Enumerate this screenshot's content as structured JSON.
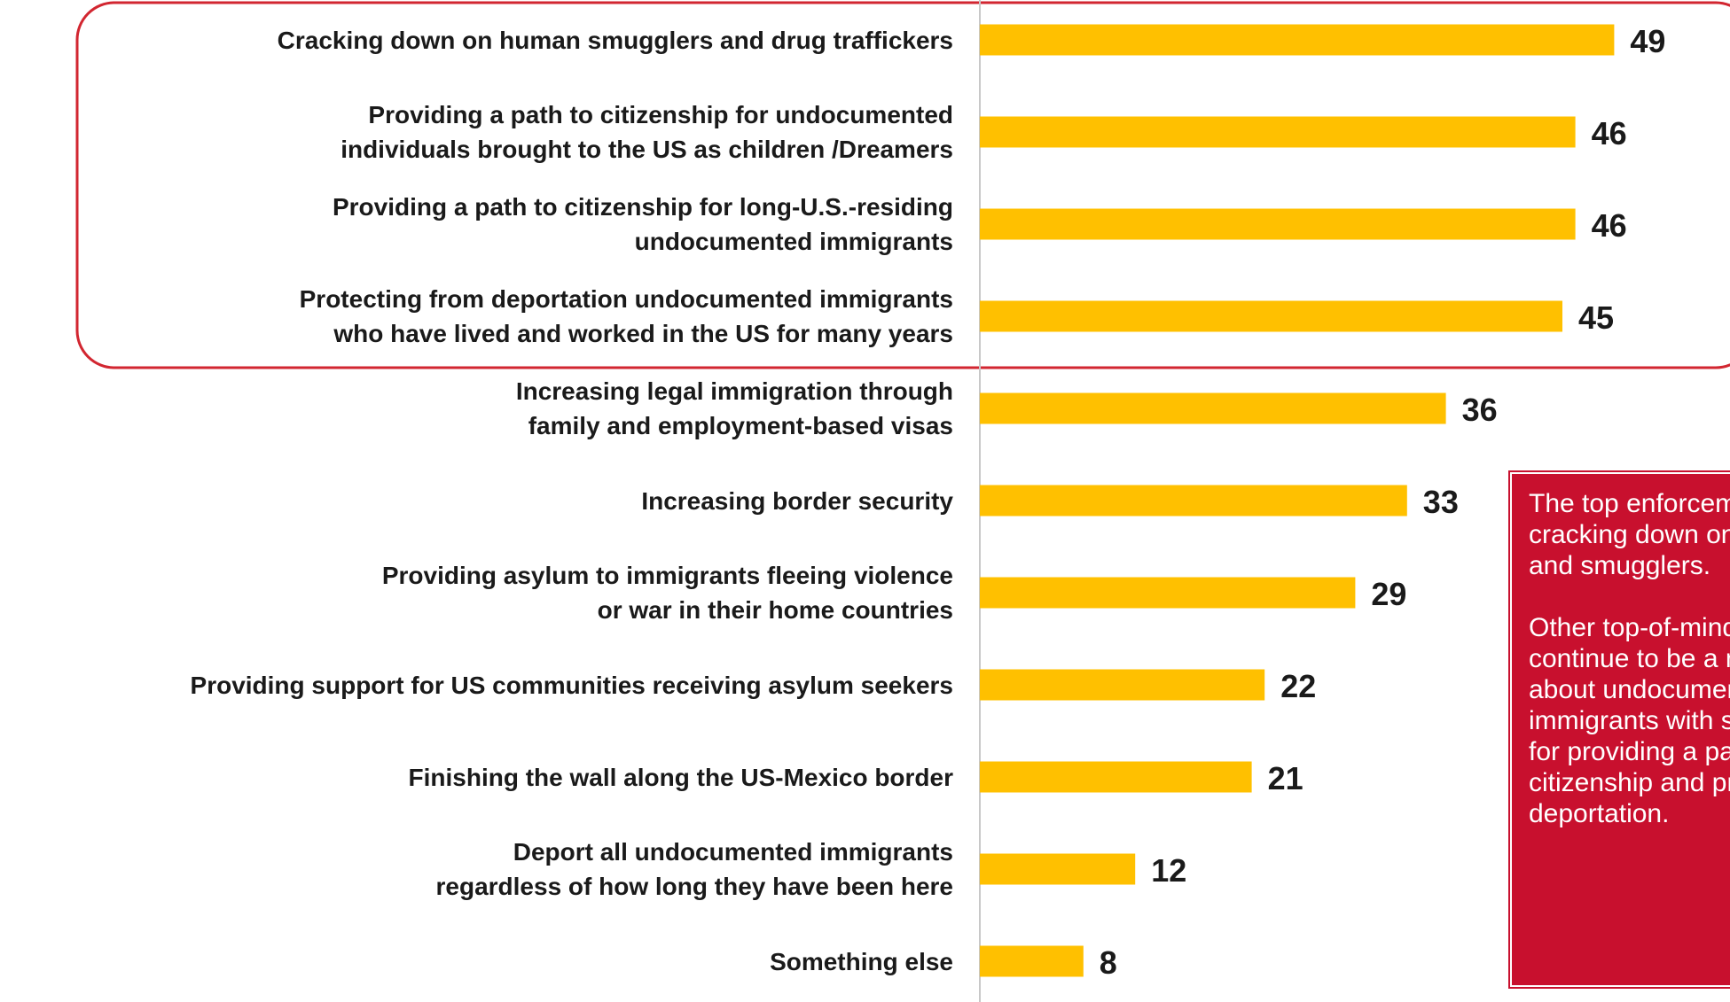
{
  "chart_data": {
    "type": "bar",
    "orientation": "horizontal",
    "categories": [
      [
        "Cracking down on human smugglers and drug traffickers"
      ],
      [
        "Providing a path to citizenship for undocumented",
        "individuals brought to the US as children /Dreamers"
      ],
      [
        "Providing a path to citizenship for long-U.S.-residing",
        "undocumented immigrants"
      ],
      [
        "Protecting from deportation undocumented immigrants",
        "who have lived and worked in the US for many years"
      ],
      [
        "Increasing legal immigration through",
        "family and employment-based visas"
      ],
      [
        "Increasing border security"
      ],
      [
        "Providing asylum to immigrants fleeing violence",
        "or war in their home countries"
      ],
      [
        "Providing support for US communities receiving asylum seekers"
      ],
      [
        "Finishing the wall along the US-Mexico border"
      ],
      [
        "Deport all undocumented immigrants",
        "regardless of how long they have been here"
      ],
      [
        "Something else"
      ]
    ],
    "values": [
      49,
      46,
      46,
      45,
      36,
      33,
      29,
      22,
      21,
      12,
      8
    ],
    "data_labels": [
      "49",
      "46",
      "46",
      "45",
      "36",
      "33",
      "29",
      "22",
      "21",
      "12",
      "8"
    ],
    "highlighted_categories": [
      0,
      1,
      2,
      3
    ],
    "xlim": [
      0,
      58
    ],
    "grid": false,
    "legend": "none",
    "bar_color": "#ffc000",
    "highlight_color": "#d22630",
    "axis_color": "#c8c8c8"
  },
  "callout": {
    "paragraphs": [
      "The top enforcement priority is cracking down on traffickers and smugglers.",
      "Other top-of-mind priorities continue to be a mix of concern about undocumented immigrants with strong support for providing a path to citizenship and protection from deportation."
    ],
    "background": "#c8102e",
    "text_color": "#ffffff"
  }
}
